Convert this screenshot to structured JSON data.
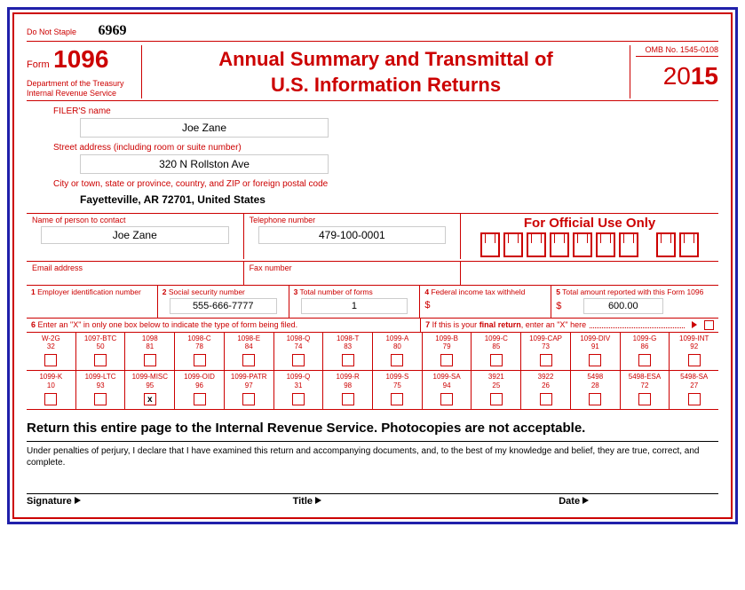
{
  "colors": {
    "red": "#cc0000",
    "blue_border": "#2020aa",
    "input_border": "#cccccc"
  },
  "header": {
    "no_staple": "Do Not Staple",
    "handwritten_number": "6969",
    "form_word": "Form",
    "form_number": "1096",
    "dept_line1": "Department of the Treasury",
    "dept_line2": "Internal Revenue Service",
    "title_line1": "Annual Summary and Transmittal of",
    "title_line2": "U.S. Information Returns",
    "omb": "OMB No. 1545-0108",
    "year_prefix": "20",
    "year_suffix": "15"
  },
  "filer": {
    "name_label": "FILER'S name",
    "name": "Joe Zane",
    "street_label": "Street address (including room or suite number)",
    "street": "320 N Rollston Ave",
    "city_label": "City or town, state or province, country, and ZIP or foreign postal code",
    "city": "Fayetteville, AR 72701, United States"
  },
  "contact": {
    "person_label": "Name of person to contact",
    "person": "Joe Zane",
    "phone_label": "Telephone number",
    "phone": "479-100-0001",
    "email_label": "Email address",
    "email": "",
    "fax_label": "Fax number",
    "fax": "",
    "official_use": "For Official Use Only"
  },
  "boxes": {
    "b1_label": "1 Employer identification number",
    "b1": "",
    "b2_label": "2 Social security number",
    "b2": "555-666-7777",
    "b3_label": "3 Total number of forms",
    "b3": "1",
    "b4_label": "4 Federal income tax withheld",
    "b4": "",
    "b5_label": "5 Total amount reported with this Form 1096",
    "b5": "600.00"
  },
  "row6": {
    "a": "6 Enter an \"X\" in only one box below to indicate the type of form being filed.",
    "b_prefix": "7 If this is your ",
    "b_bold": "final return",
    "b_suffix": ", enter an \"X\" here"
  },
  "grid_row1": [
    {
      "name": "W-2G",
      "num": "32",
      "x": false
    },
    {
      "name": "1097-BTC",
      "num": "50",
      "x": false
    },
    {
      "name": "1098",
      "num": "81",
      "x": false
    },
    {
      "name": "1098-C",
      "num": "78",
      "x": false
    },
    {
      "name": "1098-E",
      "num": "84",
      "x": false
    },
    {
      "name": "1098-Q",
      "num": "74",
      "x": false
    },
    {
      "name": "1098-T",
      "num": "83",
      "x": false
    },
    {
      "name": "1099-A",
      "num": "80",
      "x": false
    },
    {
      "name": "1099-B",
      "num": "79",
      "x": false
    },
    {
      "name": "1099-C",
      "num": "85",
      "x": false
    },
    {
      "name": "1099-CAP",
      "num": "73",
      "x": false
    },
    {
      "name": "1099-DIV",
      "num": "91",
      "x": false
    },
    {
      "name": "1099-G",
      "num": "86",
      "x": false
    },
    {
      "name": "1099-INT",
      "num": "92",
      "x": false
    }
  ],
  "grid_row2": [
    {
      "name": "1099-K",
      "num": "10",
      "x": false
    },
    {
      "name": "1099-LTC",
      "num": "93",
      "x": false
    },
    {
      "name": "1099-MISC",
      "num": "95",
      "x": true
    },
    {
      "name": "1099-OID",
      "num": "96",
      "x": false
    },
    {
      "name": "1099-PATR",
      "num": "97",
      "x": false
    },
    {
      "name": "1099-Q",
      "num": "31",
      "x": false
    },
    {
      "name": "1099-R",
      "num": "98",
      "x": false
    },
    {
      "name": "1099-S",
      "num": "75",
      "x": false
    },
    {
      "name": "1099-SA",
      "num": "94",
      "x": false
    },
    {
      "name": "3921",
      "num": "25",
      "x": false
    },
    {
      "name": "3922",
      "num": "26",
      "x": false
    },
    {
      "name": "5498",
      "num": "28",
      "x": false
    },
    {
      "name": "5498-ESA",
      "num": "72",
      "x": false
    },
    {
      "name": "5498-SA",
      "num": "27",
      "x": false
    }
  ],
  "footer": {
    "return_notice": "Return this entire page to the Internal Revenue Service. Photocopies are not acceptable.",
    "perjury": "Under penalties of perjury, I declare that I have examined this return and accompanying documents, and, to the best of my knowledge and belief, they are true, correct, and complete.",
    "signature": "Signature",
    "title": "Title",
    "date": "Date"
  }
}
